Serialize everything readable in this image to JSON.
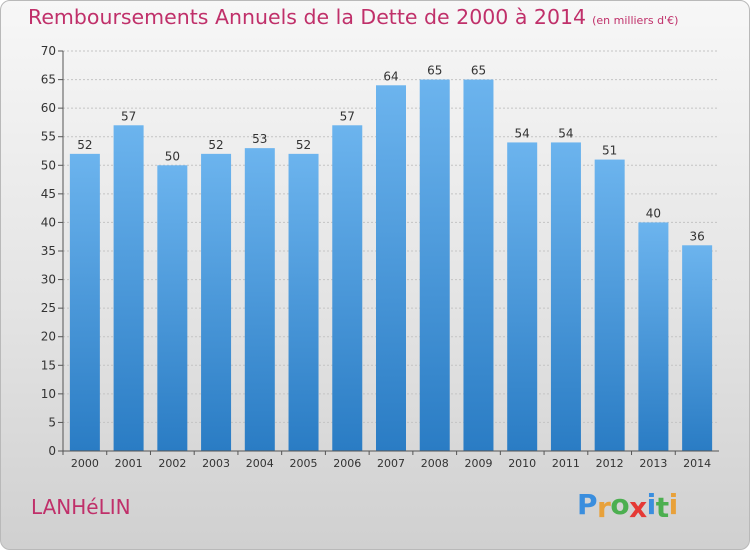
{
  "chart_data": {
    "type": "bar",
    "title": "Remboursements Annuels de la Dette de 2000 à 2014",
    "subtitle": "(en milliers d'€)",
    "categories": [
      "2000",
      "2001",
      "2002",
      "2003",
      "2004",
      "2005",
      "2006",
      "2007",
      "2008",
      "2009",
      "2010",
      "2011",
      "2012",
      "2013",
      "2014"
    ],
    "values": [
      52,
      57,
      50,
      52,
      53,
      52,
      57,
      64,
      65,
      65,
      54,
      54,
      51,
      40,
      36
    ],
    "ylim": [
      0,
      70
    ],
    "yticks": [
      0,
      5,
      10,
      15,
      20,
      25,
      30,
      35,
      40,
      45,
      50,
      55,
      60,
      65,
      70
    ],
    "grid": true,
    "xlabel": "",
    "ylabel": ""
  },
  "commune": "LANHéLIN",
  "logo": {
    "letters": [
      "P",
      "r",
      "o",
      "x",
      "i",
      "t",
      "i"
    ],
    "colors": [
      "#3a8ede",
      "#e8a13a",
      "#4caf50",
      "#e53935",
      "#3a8ede",
      "#4caf50",
      "#e8a13a"
    ]
  },
  "colors": {
    "bar_top": "#6cb4ee",
    "bar_bottom": "#2a7cc4",
    "title": "#c0306a"
  }
}
